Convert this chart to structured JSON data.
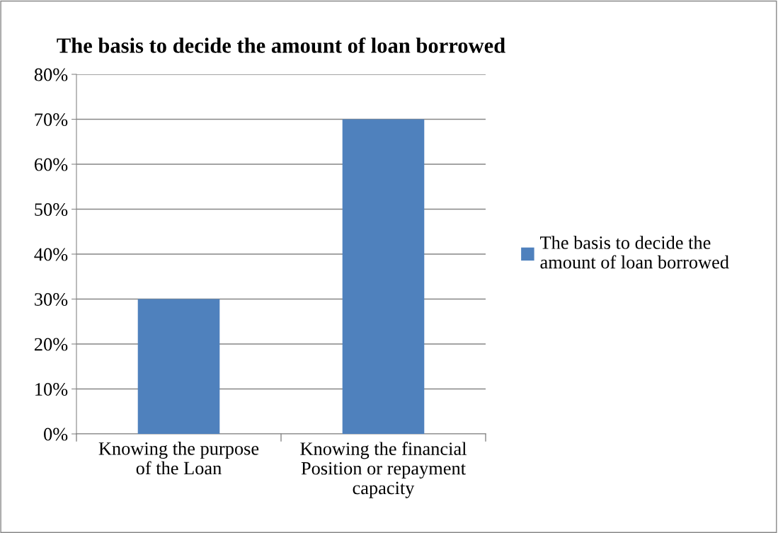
{
  "chart_data": {
    "type": "bar",
    "title": "The basis to decide the amount of loan borrowed",
    "categories": [
      "Knowing the purpose\nof the Loan",
      "Knowing the financial\nPosition or repayment\ncapacity"
    ],
    "series": [
      {
        "name": "The basis to decide the\namount of loan borrowed",
        "color": "#4f81bd",
        "values": [
          30,
          70
        ]
      }
    ],
    "ylim": [
      0,
      80
    ],
    "yticks": [
      {
        "value": 0,
        "label": "0%"
      },
      {
        "value": 10,
        "label": "10%"
      },
      {
        "value": 20,
        "label": "20%"
      },
      {
        "value": 30,
        "label": "30%"
      },
      {
        "value": 40,
        "label": "40%"
      },
      {
        "value": 50,
        "label": "50%"
      },
      {
        "value": 60,
        "label": "60%"
      },
      {
        "value": 70,
        "label": "70%"
      },
      {
        "value": 80,
        "label": "80%"
      }
    ],
    "grid": "y",
    "legend": "right"
  }
}
